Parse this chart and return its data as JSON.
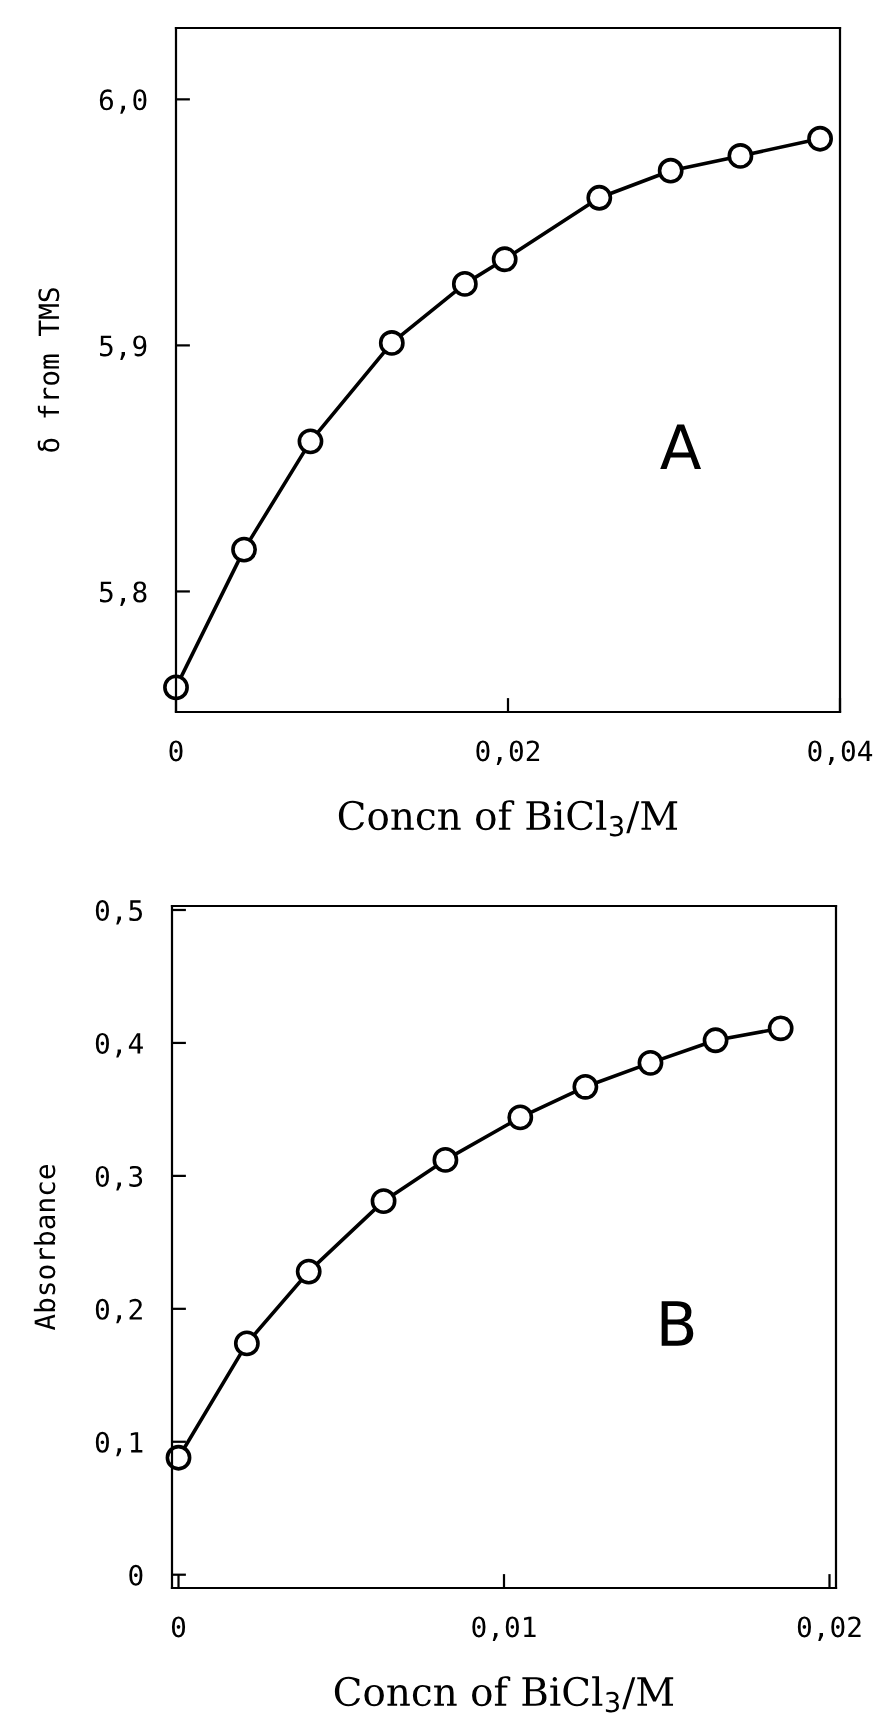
{
  "chart_data": [
    {
      "type": "line",
      "ylabel": "δ from TMS",
      "xlabel": "Concn of BiCl$_{3}$/M",
      "annotations": [
        "A"
      ],
      "marker": "circle",
      "line_style": "solid",
      "grid": false,
      "x": [
        0,
        0.0041,
        0.0081,
        0.013,
        0.0174,
        0.0198,
        0.0255,
        0.0298,
        0.034,
        0.0388
      ],
      "series": [
        {
          "color": "#000000",
          "values": [
            5.761,
            5.817,
            5.861,
            5.901,
            5.925,
            5.935,
            5.96,
            5.971,
            5.977,
            5.984
          ]
        }
      ],
      "xlim": [
        0,
        0.04
      ],
      "ylim": [
        5.751,
        6.029
      ],
      "xticks": [
        {
          "value": 0,
          "label": "0"
        },
        {
          "value": 0.02,
          "label": "0,02"
        },
        {
          "value": 0.04,
          "label": "0,04"
        }
      ],
      "yticks": [
        {
          "value": 5.8,
          "label": "5,8"
        },
        {
          "value": 5.9,
          "label": "5,9"
        },
        {
          "value": 6.0,
          "label": "6,0"
        }
      ]
    },
    {
      "type": "line",
      "ylabel": "Absorbance",
      "xlabel": "Concn of BiCl$_{3}$/M",
      "annotations": [
        "B"
      ],
      "marker": "circle",
      "line_style": "solid",
      "grid": false,
      "x": [
        0,
        0.0021,
        0.004,
        0.0063,
        0.0082,
        0.0105,
        0.0125,
        0.0145,
        0.0165,
        0.0185
      ],
      "series": [
        {
          "color": "#000000",
          "values": [
            0.088,
            0.174,
            0.228,
            0.281,
            0.312,
            0.344,
            0.367,
            0.385,
            0.402,
            0.411
          ]
        }
      ],
      "xlim": [
        -0.0002,
        0.0202
      ],
      "ylim": [
        -0.01,
        0.503
      ],
      "xticks": [
        {
          "value": 0,
          "label": "0"
        },
        {
          "value": 0.01,
          "label": "0,01"
        },
        {
          "value": 0.02,
          "label": "0,02"
        }
      ],
      "yticks": [
        {
          "value": 0,
          "label": "0"
        },
        {
          "value": 0.1,
          "label": "0,1"
        },
        {
          "value": 0.2,
          "label": "0,2"
        },
        {
          "value": 0.3,
          "label": "0,3"
        },
        {
          "value": 0.4,
          "label": "0,4"
        },
        {
          "value": 0.5,
          "label": "0,5"
        }
      ]
    }
  ]
}
